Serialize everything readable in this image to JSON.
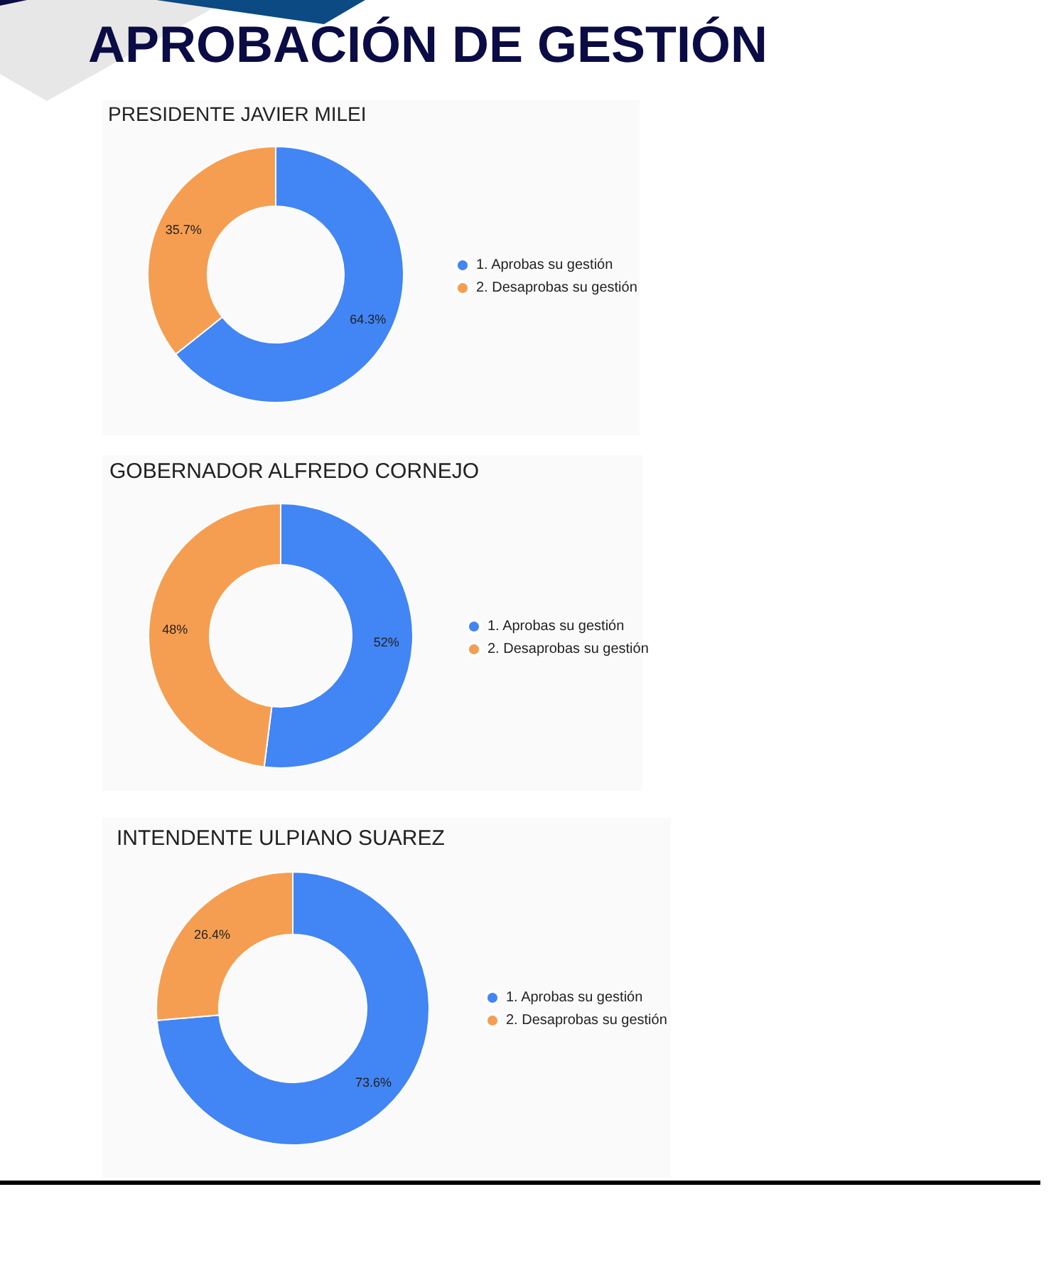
{
  "chart_data": [
    {
      "type": "donut",
      "title": "APROBACIÓN DE GESTIÓN",
      "subtitle": "PRESIDENTE JAVIER MILEI",
      "categories": [
        "1. Aprobas su gestión",
        "2. Desaprobas su gestión"
      ],
      "values": [
        64.3,
        35.7
      ],
      "colors": [
        "#4285f4",
        "#f59e51"
      ],
      "value_labels": [
        "64.3%",
        "35.7%"
      ],
      "legend": "right"
    },
    {
      "type": "donut",
      "title": "GOBERNADOR ALFREDO CORNEJO",
      "categories": [
        "1. Aprobas su gestión",
        "2. Desaprobas su gestión"
      ],
      "values": [
        52,
        48
      ],
      "colors": [
        "#4285f4",
        "#f59e51"
      ],
      "value_labels": [
        "52%",
        "48%"
      ],
      "legend": "right"
    },
    {
      "type": "donut",
      "title": "INTENDENTE ULPIANO SUAREZ",
      "categories": [
        "1. Aprobas su gestión",
        "2. Desaprobas su gestión"
      ],
      "values": [
        73.6,
        26.4
      ],
      "colors": [
        "#4285f4",
        "#f59e51"
      ],
      "value_labels": [
        "73.6%",
        "26.4%"
      ],
      "legend": "right"
    }
  ]
}
